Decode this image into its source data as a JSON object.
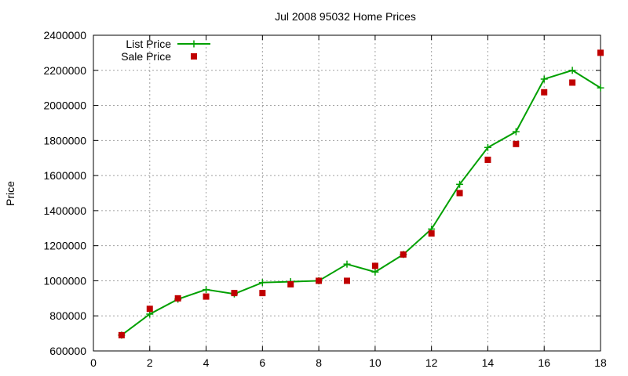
{
  "chart_data": {
    "type": "line",
    "title": "Jul 2008 95032 Home Prices",
    "xlabel": "",
    "ylabel": "Price",
    "xlim": [
      0,
      18
    ],
    "ylim": [
      600000,
      2400000
    ],
    "x_ticks": [
      0,
      2,
      4,
      6,
      8,
      10,
      12,
      14,
      16,
      18
    ],
    "y_ticks": [
      600000,
      800000,
      1000000,
      1200000,
      1400000,
      1600000,
      1800000,
      2000000,
      2200000,
      2400000
    ],
    "x_tick_labels": [
      "0",
      "2",
      "4",
      "6",
      "8",
      "10",
      "12",
      "14",
      "16",
      "18"
    ],
    "y_tick_labels": [
      "600000",
      "800000",
      "1000000",
      "1200000",
      "1400000",
      "1600000",
      "1800000",
      "2000000",
      "2200000",
      "2400000"
    ],
    "grid": true,
    "legend_position": "top-left",
    "series": [
      {
        "name": "List Price",
        "style": "line-points",
        "color": "#00a000",
        "marker": "plus",
        "x": [
          1,
          2,
          3,
          4,
          5,
          6,
          7,
          8,
          9,
          10,
          11,
          12,
          13,
          14,
          15,
          16,
          17,
          18
        ],
        "values": [
          690000,
          810000,
          895000,
          950000,
          925000,
          990000,
          995000,
          1000000,
          1095000,
          1050000,
          1150000,
          1295000,
          1550000,
          1760000,
          1850000,
          2150000,
          2200000,
          2100000
        ]
      },
      {
        "name": "Sale Price",
        "style": "points",
        "color": "#c00000",
        "marker": "square",
        "x": [
          1,
          2,
          3,
          4,
          5,
          6,
          7,
          8,
          9,
          10,
          11,
          12,
          13,
          14,
          15,
          16,
          17,
          18
        ],
        "values": [
          690000,
          840000,
          900000,
          910000,
          930000,
          930000,
          980000,
          1000000,
          1000000,
          1085000,
          1150000,
          1270000,
          1500000,
          1690000,
          1780000,
          2075000,
          2130000,
          2300000
        ]
      }
    ]
  }
}
